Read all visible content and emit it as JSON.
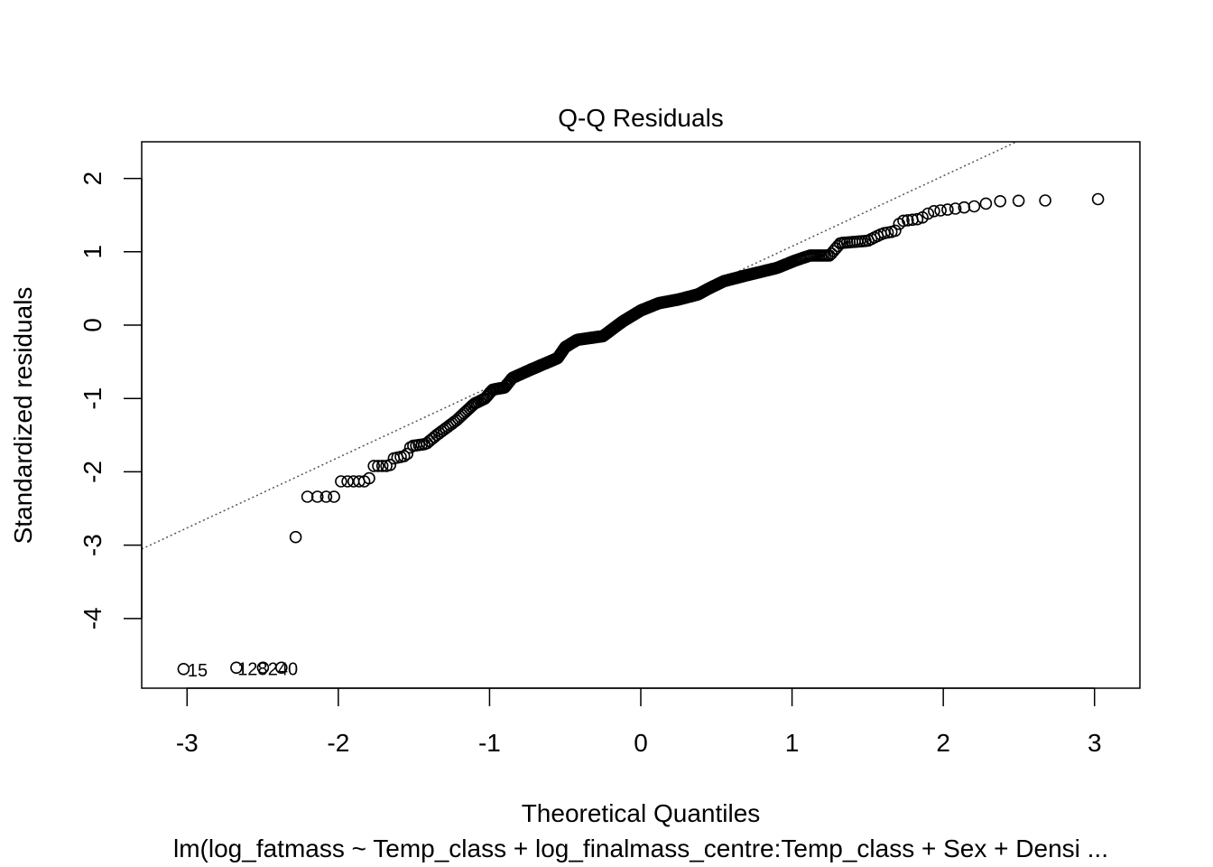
{
  "chart_data": {
    "type": "scatter",
    "title": "Q-Q Residuals",
    "xlabel": "Theoretical Quantiles",
    "ylabel": "Standardized residuals",
    "subtitle": "lm(log_fatmass ~ Temp_class + log_finalmass_centre:Temp_class + Sex + Densi ...",
    "xlim": [
      -3.3,
      3.3
    ],
    "ylim": [
      -4.95,
      2.5
    ],
    "x_ticks": [
      "-3",
      "-2",
      "-1",
      "0",
      "1",
      "2",
      "3"
    ],
    "y_ticks": [
      "-4",
      "-3",
      "-2",
      "-1",
      "0",
      "1",
      "2"
    ],
    "reference_line": {
      "style": "dotted",
      "intercept": 0.115,
      "slope": 0.96
    },
    "labeled_points": [
      {
        "label": "15",
        "x": -3.05,
        "y": -4.69
      },
      {
        "label": "128",
        "x": -2.72,
        "y": -4.67
      },
      {
        "label": "240",
        "x": -2.52,
        "y": -4.67
      }
    ],
    "point_count": 400,
    "quantile_curve": [
      [
        -3.05,
        -4.69
      ],
      [
        -2.72,
        -4.67
      ],
      [
        -2.52,
        -4.67
      ],
      [
        -2.32,
        -4.67
      ],
      [
        -2.27,
        -2.34
      ],
      [
        -2.02,
        -2.34
      ],
      [
        -2.0,
        -2.13
      ],
      [
        -1.8,
        -2.13
      ],
      [
        -1.78,
        -1.92
      ],
      [
        -1.66,
        -1.92
      ],
      [
        -1.64,
        -1.82
      ],
      [
        -1.55,
        -1.78
      ],
      [
        -1.52,
        -1.65
      ],
      [
        -1.42,
        -1.62
      ],
      [
        -1.35,
        -1.5
      ],
      [
        -1.22,
        -1.3
      ],
      [
        -1.1,
        -1.07
      ],
      [
        -1.03,
        -1.0
      ],
      [
        -0.98,
        -0.88
      ],
      [
        -0.9,
        -0.85
      ],
      [
        -0.85,
        -0.72
      ],
      [
        -0.72,
        -0.6
      ],
      [
        -0.55,
        -0.45
      ],
      [
        -0.5,
        -0.3
      ],
      [
        -0.42,
        -0.2
      ],
      [
        -0.25,
        -0.15
      ],
      [
        -0.12,
        0.05
      ],
      [
        0.0,
        0.2
      ],
      [
        0.12,
        0.3
      ],
      [
        0.25,
        0.35
      ],
      [
        0.38,
        0.42
      ],
      [
        0.45,
        0.5
      ],
      [
        0.55,
        0.6
      ],
      [
        0.7,
        0.68
      ],
      [
        0.9,
        0.78
      ],
      [
        1.02,
        0.88
      ],
      [
        1.12,
        0.95
      ],
      [
        1.25,
        0.95
      ],
      [
        1.32,
        1.12
      ],
      [
        1.5,
        1.15
      ],
      [
        1.6,
        1.25
      ],
      [
        1.68,
        1.28
      ],
      [
        1.72,
        1.42
      ],
      [
        1.85,
        1.45
      ],
      [
        1.92,
        1.55
      ],
      [
        2.05,
        1.58
      ],
      [
        2.12,
        1.6
      ],
      [
        2.25,
        1.63
      ],
      [
        2.32,
        1.69
      ],
      [
        2.42,
        1.69
      ],
      [
        2.55,
        1.7
      ],
      [
        2.72,
        1.7
      ],
      [
        3.05,
        1.72
      ]
    ]
  }
}
